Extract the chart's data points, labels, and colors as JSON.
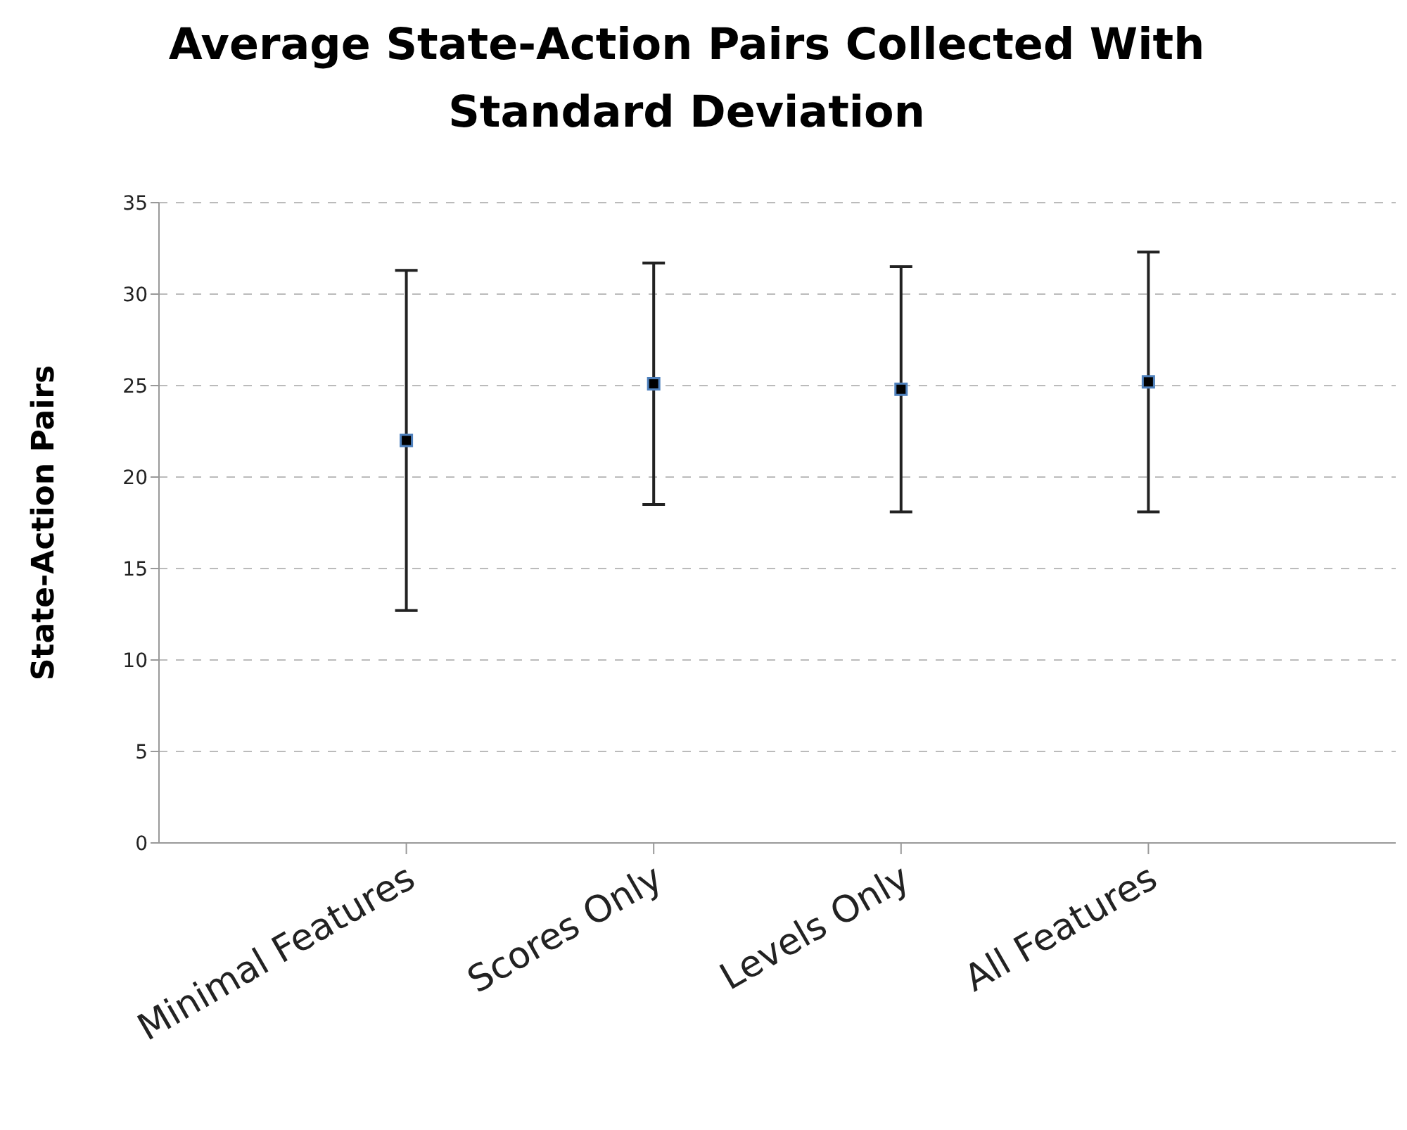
{
  "chart_data": {
    "type": "scatter",
    "title": "Average State-Action Pairs Collected With Standard Deviation",
    "ylabel": "State-Action Pairs",
    "categories": [
      "Minimal Features",
      "Scores Only",
      "Levels Only",
      "All Features"
    ],
    "values": [
      22.0,
      25.1,
      24.8,
      25.2
    ],
    "errors": [
      9.3,
      6.6,
      6.7,
      7.1
    ],
    "color": "#000000",
    "marker": "square",
    "ylim": [
      0,
      35
    ],
    "yticks": [
      0,
      5,
      10,
      15,
      20,
      25,
      30,
      35
    ],
    "grid": "y"
  }
}
